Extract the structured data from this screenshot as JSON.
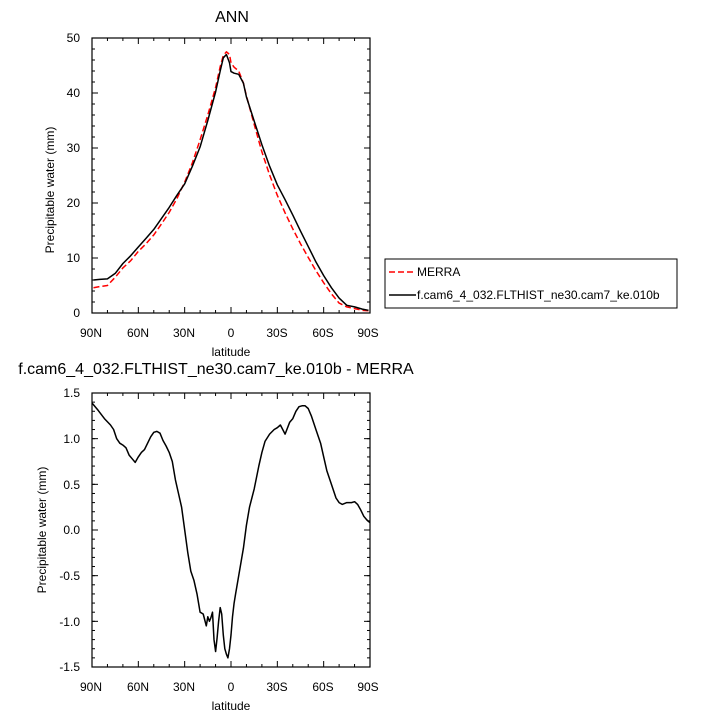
{
  "chart_data": [
    {
      "type": "line",
      "title": "ANN",
      "xlabel": "latitude",
      "ylabel": "Precipitable water (mm)",
      "xlim": [
        90,
        -90
      ],
      "ylim": [
        0,
        50
      ],
      "xticks": [
        90,
        60,
        30,
        0,
        -30,
        -60,
        -90
      ],
      "xtick_labels": [
        "90N",
        "60N",
        "30N",
        "0",
        "30S",
        "60S",
        "90S"
      ],
      "yticks": [
        0,
        10,
        20,
        30,
        40,
        50
      ],
      "ytick_labels": [
        "0",
        "10",
        "20",
        "30",
        "40",
        "50"
      ],
      "legend_placement": "right",
      "series": [
        {
          "name": "MERRA",
          "color": "#ff0000",
          "style": "dashed",
          "x": [
            89,
            85,
            80,
            75,
            70,
            65,
            60,
            55,
            50,
            45,
            40,
            35,
            30,
            25,
            20,
            15,
            10,
            7,
            5,
            3,
            1,
            0,
            -2,
            -5,
            -8,
            -10,
            -15,
            -20,
            -25,
            -30,
            -35,
            -40,
            -45,
            -50,
            -55,
            -60,
            -65,
            -70,
            -75,
            -80,
            -85,
            -89
          ],
          "y": [
            4.6,
            4.8,
            5.0,
            6.5,
            8.2,
            9.5,
            11.2,
            12.6,
            14.2,
            16.2,
            18.3,
            20.8,
            23.8,
            27.3,
            31.5,
            36.0,
            41.0,
            44.8,
            46.8,
            47.5,
            47.0,
            45.5,
            44.7,
            44.0,
            41.8,
            39.5,
            34.3,
            29.3,
            25.1,
            21.4,
            18.2,
            15.3,
            12.6,
            10.1,
            7.7,
            5.5,
            3.5,
            1.8,
            1.1,
            0.8,
            0.5,
            0.4
          ]
        },
        {
          "name": "f.cam6_4_032.FLTHIST_ne30.cam7_ke.010b",
          "color": "#000000",
          "style": "solid",
          "x": [
            89,
            85,
            80,
            75,
            70,
            65,
            60,
            55,
            50,
            45,
            40,
            35,
            30,
            25,
            20,
            15,
            10,
            7,
            5,
            3,
            1,
            0,
            -2,
            -5,
            -8,
            -10,
            -15,
            -20,
            -25,
            -30,
            -35,
            -40,
            -45,
            -50,
            -55,
            -60,
            -65,
            -70,
            -75,
            -80,
            -85,
            -89
          ],
          "y": [
            6.0,
            6.1,
            6.2,
            7.2,
            9.0,
            10.4,
            12.0,
            13.6,
            15.2,
            17.2,
            19.2,
            21.4,
            23.5,
            26.7,
            30.2,
            35.0,
            40.2,
            44.0,
            46.4,
            47.0,
            45.5,
            43.9,
            43.6,
            43.4,
            41.8,
            39.3,
            34.9,
            30.6,
            26.7,
            23.3,
            20.6,
            17.8,
            14.9,
            12.1,
            9.3,
            6.8,
            4.6,
            2.7,
            1.4,
            1.1,
            0.7,
            0.5
          ]
        }
      ]
    },
    {
      "type": "line",
      "title": "f.cam6_4_032.FLTHIST_ne30.cam7_ke.010b - MERRA",
      "xlabel": "latitude",
      "ylabel": "Precipitable water (mm)",
      "xlim": [
        90,
        -90
      ],
      "ylim": [
        -1.5,
        1.5
      ],
      "xticks": [
        90,
        60,
        30,
        0,
        -30,
        -60,
        -90
      ],
      "xtick_labels": [
        "90N",
        "60N",
        "30N",
        "0",
        "30S",
        "60S",
        "90S"
      ],
      "yticks": [
        -1.5,
        -1.0,
        -0.5,
        0.0,
        0.5,
        1.0,
        1.5
      ],
      "ytick_labels": [
        "-1.5",
        "-1.0",
        "-0.5",
        "0.0",
        "0.5",
        "1.0",
        "1.5"
      ],
      "series": [
        {
          "name": "f.cam6_4_032.FLTHIST_ne30.cam7_ke.010b - MERRA",
          "color": "#000000",
          "style": "solid",
          "x": [
            90,
            86,
            82,
            78,
            76,
            74,
            72,
            70,
            68,
            66,
            64,
            62,
            60,
            58,
            56,
            54,
            52,
            50,
            48,
            46,
            44,
            42,
            40,
            38,
            36,
            34,
            32,
            30,
            28,
            26,
            24,
            22,
            20,
            18,
            16,
            15,
            14,
            13,
            12,
            11,
            10,
            9,
            8,
            7,
            6,
            5,
            4,
            3,
            2,
            1,
            0,
            -1,
            -2,
            -3,
            -5,
            -8,
            -10,
            -12,
            -15,
            -18,
            -20,
            -22,
            -25,
            -28,
            -30,
            -32,
            -35,
            -38,
            -40,
            -42,
            -44,
            -46,
            -48,
            -50,
            -52,
            -55,
            -58,
            -60,
            -62,
            -65,
            -68,
            -70,
            -72,
            -75,
            -78,
            -80,
            -82,
            -84,
            -86,
            -88,
            -90
          ],
          "y": [
            1.39,
            1.31,
            1.22,
            1.15,
            1.1,
            1.0,
            0.95,
            0.93,
            0.9,
            0.82,
            0.78,
            0.74,
            0.8,
            0.85,
            0.88,
            0.95,
            1.02,
            1.07,
            1.08,
            1.06,
            0.98,
            0.92,
            0.85,
            0.75,
            0.55,
            0.4,
            0.25,
            0.0,
            -0.25,
            -0.45,
            -0.55,
            -0.7,
            -0.9,
            -0.92,
            -1.05,
            -0.95,
            -1.0,
            -0.96,
            -0.9,
            -1.2,
            -1.33,
            -1.18,
            -1.0,
            -0.85,
            -0.92,
            -1.15,
            -1.3,
            -1.36,
            -1.4,
            -1.3,
            -1.15,
            -0.95,
            -0.8,
            -0.7,
            -0.5,
            -0.2,
            0.05,
            0.25,
            0.45,
            0.7,
            0.85,
            0.97,
            1.05,
            1.1,
            1.12,
            1.15,
            1.05,
            1.18,
            1.22,
            1.3,
            1.35,
            1.36,
            1.36,
            1.33,
            1.25,
            1.1,
            0.95,
            0.8,
            0.65,
            0.5,
            0.35,
            0.3,
            0.28,
            0.3,
            0.3,
            0.31,
            0.28,
            0.22,
            0.15,
            0.11,
            0.08
          ]
        }
      ]
    }
  ]
}
